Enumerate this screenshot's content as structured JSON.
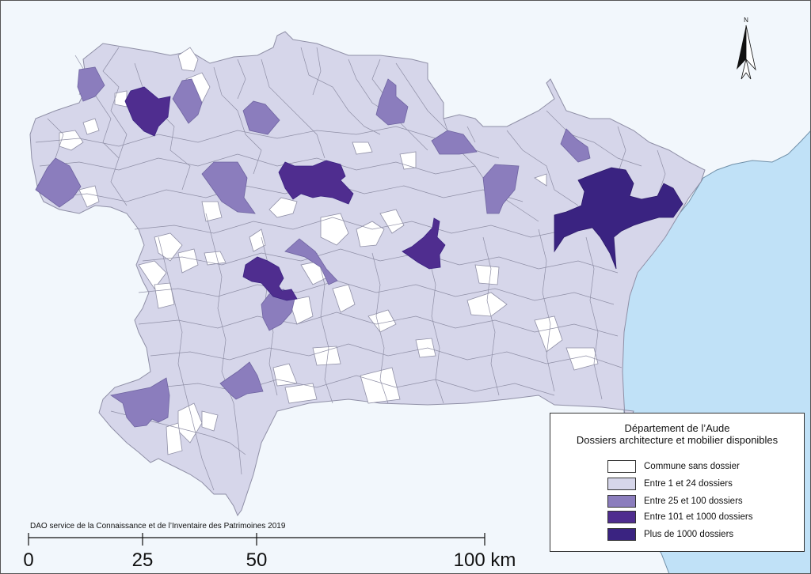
{
  "legend": {
    "title_line1": "Département de l’Aude",
    "title_line2": "Dossiers architecture et mobilier disponibles",
    "items": [
      {
        "label": "Commune sans dossier",
        "color": "#ffffff"
      },
      {
        "label": "Entre 1 et 24 dossiers",
        "color": "#d6d6ea"
      },
      {
        "label": "Entre 25 et 100 dossiers",
        "color": "#8b7dbd"
      },
      {
        "label": "Entre 101 et 1000 dossiers",
        "color": "#4f2d8f"
      },
      {
        "label": "Plus de 1000 dossiers",
        "color": "#3a2381"
      }
    ]
  },
  "credit": "DAO service de la Connaissance et de l’Inventaire des Patrimoines 2019",
  "scale": {
    "labels": [
      "0",
      "25",
      "50",
      "100 km"
    ]
  },
  "north_arrow": {
    "label": "N"
  },
  "colors": {
    "sea": "#c0e1f7",
    "background": "#f2f7fc",
    "border": "#8f8fa6"
  }
}
